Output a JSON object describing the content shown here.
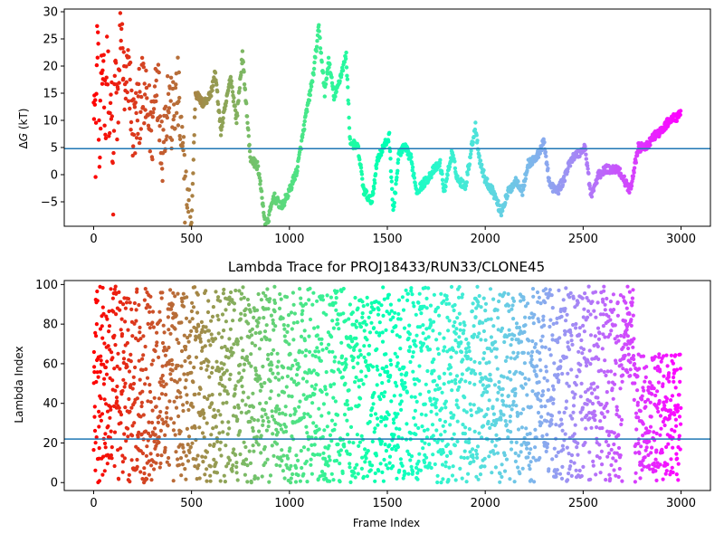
{
  "chart_data": [
    {
      "type": "scatter",
      "title": "",
      "xlabel": "",
      "ylabel": "ΔG (kT)",
      "ylabel_parts": {
        "delta": "Δ",
        "var": "G",
        "unit": " (kT)"
      },
      "xlim": [
        -150,
        3150
      ],
      "ylim": [
        -9.5,
        30.5
      ],
      "xticks": [
        0,
        500,
        1000,
        1500,
        2000,
        2500,
        3000
      ],
      "yticks": [
        -5,
        0,
        5,
        10,
        15,
        20,
        25,
        30
      ],
      "hline": 4.8,
      "hline_color": "#1f77b4",
      "colormap": "rainbow",
      "grid": false,
      "series_keypoints": [
        [
          0,
          20
        ],
        [
          10,
          5
        ],
        [
          20,
          28
        ],
        [
          30,
          2
        ],
        [
          40,
          15
        ],
        [
          50,
          22
        ],
        [
          60,
          10
        ],
        [
          70,
          28
        ],
        [
          80,
          5
        ],
        [
          90,
          15
        ],
        [
          100,
          -5
        ],
        [
          110,
          25
        ],
        [
          120,
          8
        ],
        [
          140,
          30
        ],
        [
          160,
          12
        ],
        [
          180,
          20
        ],
        [
          200,
          8
        ],
        [
          250,
          15
        ],
        [
          300,
          8
        ],
        [
          320,
          20
        ],
        [
          350,
          5
        ],
        [
          380,
          15
        ],
        [
          400,
          10
        ],
        [
          430,
          15
        ],
        [
          450,
          5
        ],
        [
          480,
          -8
        ],
        [
          500,
          -9
        ],
        [
          520,
          15
        ],
        [
          560,
          13
        ],
        [
          600,
          15
        ],
        [
          620,
          19
        ],
        [
          650,
          8
        ],
        [
          700,
          18
        ],
        [
          730,
          10
        ],
        [
          760,
          22
        ],
        [
          800,
          3
        ],
        [
          840,
          1.5
        ],
        [
          880,
          -10
        ],
        [
          920,
          -4
        ],
        [
          960,
          -6
        ],
        [
          1000,
          -3
        ],
        [
          1040,
          1
        ],
        [
          1080,
          10
        ],
        [
          1120,
          18
        ],
        [
          1150,
          27
        ],
        [
          1180,
          15
        ],
        [
          1200,
          21
        ],
        [
          1230,
          14
        ],
        [
          1260,
          18
        ],
        [
          1290,
          22
        ],
        [
          1310,
          6
        ],
        [
          1350,
          5
        ],
        [
          1380,
          -3
        ],
        [
          1420,
          -5
        ],
        [
          1450,
          3
        ],
        [
          1480,
          5
        ],
        [
          1510,
          7
        ],
        [
          1530,
          -7
        ],
        [
          1560,
          4
        ],
        [
          1590,
          5
        ],
        [
          1620,
          3
        ],
        [
          1650,
          -3
        ],
        [
          1700,
          -1
        ],
        [
          1740,
          1
        ],
        [
          1770,
          2
        ],
        [
          1790,
          -3
        ],
        [
          1830,
          4
        ],
        [
          1860,
          -1
        ],
        [
          1900,
          -2
        ],
        [
          1930,
          5
        ],
        [
          1950,
          9
        ],
        [
          1970,
          3
        ],
        [
          2000,
          -1
        ],
        [
          2040,
          -3
        ],
        [
          2080,
          -7
        ],
        [
          2120,
          -3
        ],
        [
          2160,
          -1
        ],
        [
          2190,
          -3
        ],
        [
          2220,
          2
        ],
        [
          2260,
          3
        ],
        [
          2300,
          6
        ],
        [
          2330,
          -2
        ],
        [
          2370,
          -3
        ],
        [
          2400,
          -1
        ],
        [
          2440,
          3
        ],
        [
          2480,
          4
        ],
        [
          2510,
          5
        ],
        [
          2540,
          -4
        ],
        [
          2580,
          0
        ],
        [
          2620,
          1
        ],
        [
          2680,
          1
        ],
        [
          2740,
          -3
        ],
        [
          2780,
          5
        ],
        [
          2820,
          5
        ],
        [
          2860,
          7
        ],
        [
          2900,
          8
        ],
        [
          2940,
          10
        ],
        [
          3000,
          11
        ]
      ]
    },
    {
      "type": "scatter",
      "title": "Lambda Trace for PROJ18433/RUN33/CLONE45",
      "xlabel": "Frame Index",
      "ylabel": "Lambda Index",
      "xlim": [
        -150,
        3150
      ],
      "ylim": [
        -4,
        102
      ],
      "xticks": [
        0,
        500,
        1000,
        1500,
        2000,
        2500,
        3000
      ],
      "yticks": [
        0,
        20,
        40,
        60,
        80,
        100
      ],
      "hline": 22,
      "hline_color": "#1f77b4",
      "colormap": "rainbow",
      "grid": false,
      "point_count": 3000,
      "value_range": [
        0,
        99
      ]
    }
  ]
}
